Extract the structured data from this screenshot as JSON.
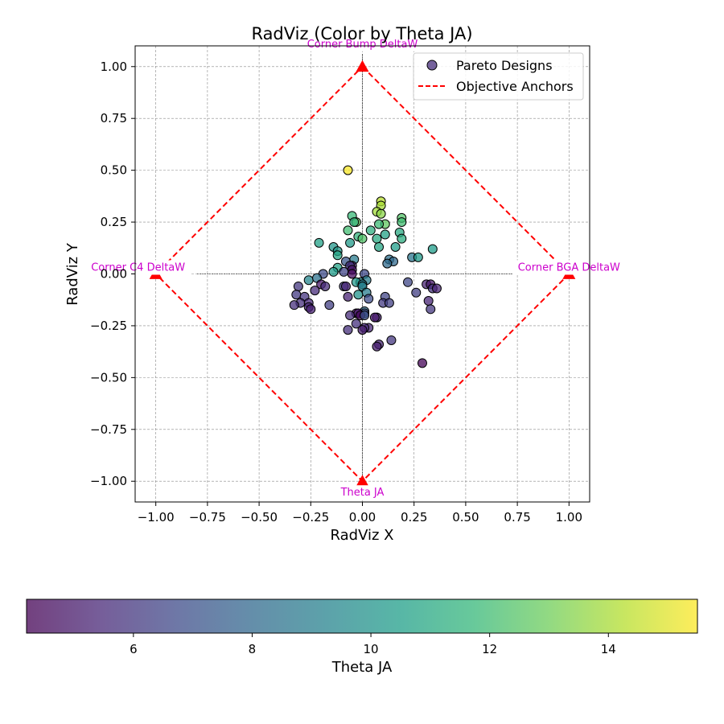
{
  "chart_data": {
    "type": "scatter",
    "title": "RadViz (Color by Theta JA)",
    "xlabel": "RadViz X",
    "ylabel": "RadViz Y",
    "xlim": [
      -1.1,
      1.1
    ],
    "ylim": [
      -1.1,
      1.1
    ],
    "xticks": [
      "-1.00",
      "-0.75",
      "-0.50",
      "-0.25",
      "0.00",
      "0.25",
      "0.50",
      "0.75",
      "1.00"
    ],
    "yticks": [
      "1.00",
      "0.75",
      "0.50",
      "0.25",
      "0.00",
      "-0.25",
      "-0.50",
      "-0.75",
      "-1.00"
    ],
    "grid": true,
    "legend": {
      "placement": "top-right",
      "entries": [
        "Pareto Designs",
        "Objective Anchors"
      ]
    },
    "anchors": [
      {
        "label": "Corner Bump DeltaW",
        "x": 0,
        "y": 1
      },
      {
        "label": "Corner BGA DeltaW",
        "x": 1,
        "y": 0
      },
      {
        "label": "Theta JA",
        "x": 0,
        "y": -1
      },
      {
        "label": "Corner C4 DeltaW",
        "x": -1,
        "y": 0
      }
    ],
    "colorbar": {
      "label": "Theta JA",
      "range": [
        4.2,
        15.5
      ],
      "ticks": [
        "6",
        "8",
        "10",
        "12",
        "14"
      ],
      "tick_values": [
        6,
        8,
        10,
        12,
        14
      ]
    },
    "points": [
      {
        "x": -0.07,
        "y": 0.5,
        "c": 15.4
      },
      {
        "x": 0.09,
        "y": 0.35,
        "c": 14.3
      },
      {
        "x": 0.09,
        "y": 0.33,
        "c": 14.0
      },
      {
        "x": 0.07,
        "y": 0.3,
        "c": 13.9
      },
      {
        "x": 0.09,
        "y": 0.29,
        "c": 13.5
      },
      {
        "x": -0.05,
        "y": 0.28,
        "c": 11.8
      },
      {
        "x": 0.19,
        "y": 0.27,
        "c": 12.4
      },
      {
        "x": -0.03,
        "y": 0.25,
        "c": 12.9
      },
      {
        "x": -0.04,
        "y": 0.25,
        "c": 11.5
      },
      {
        "x": 0.19,
        "y": 0.25,
        "c": 12.0
      },
      {
        "x": 0.11,
        "y": 0.24,
        "c": 12.7
      },
      {
        "x": 0.08,
        "y": 0.24,
        "c": 11.9
      },
      {
        "x": -0.07,
        "y": 0.21,
        "c": 12.0
      },
      {
        "x": 0.04,
        "y": 0.21,
        "c": 11.3
      },
      {
        "x": 0.18,
        "y": 0.2,
        "c": 11.0
      },
      {
        "x": 0.11,
        "y": 0.19,
        "c": 10.7
      },
      {
        "x": -0.02,
        "y": 0.18,
        "c": 11.5
      },
      {
        "x": 0.0,
        "y": 0.17,
        "c": 12.4
      },
      {
        "x": 0.07,
        "y": 0.17,
        "c": 11.0
      },
      {
        "x": 0.19,
        "y": 0.17,
        "c": 11.2
      },
      {
        "x": -0.21,
        "y": 0.15,
        "c": 10.6
      },
      {
        "x": -0.06,
        "y": 0.15,
        "c": 10.3
      },
      {
        "x": 0.08,
        "y": 0.13,
        "c": 10.9
      },
      {
        "x": 0.16,
        "y": 0.13,
        "c": 10.5
      },
      {
        "x": -0.14,
        "y": 0.13,
        "c": 10.1
      },
      {
        "x": 0.34,
        "y": 0.12,
        "c": 10.4
      },
      {
        "x": -0.12,
        "y": 0.11,
        "c": 10.2
      },
      {
        "x": -0.12,
        "y": 0.09,
        "c": 10.9
      },
      {
        "x": 0.24,
        "y": 0.08,
        "c": 8.6
      },
      {
        "x": 0.27,
        "y": 0.08,
        "c": 10.3
      },
      {
        "x": -0.04,
        "y": 0.07,
        "c": 8.9
      },
      {
        "x": 0.13,
        "y": 0.07,
        "c": 8.3
      },
      {
        "x": 0.15,
        "y": 0.06,
        "c": 8.0
      },
      {
        "x": -0.08,
        "y": 0.06,
        "c": 7.2
      },
      {
        "x": 0.12,
        "y": 0.05,
        "c": 8.1
      },
      {
        "x": -0.05,
        "y": 0.04,
        "c": 5.0
      },
      {
        "x": -0.06,
        "y": 0.04,
        "c": 5.9
      },
      {
        "x": -0.12,
        "y": 0.03,
        "c": 10.7
      },
      {
        "x": -0.05,
        "y": 0.02,
        "c": 4.7
      },
      {
        "x": -0.09,
        "y": 0.01,
        "c": 6.5
      },
      {
        "x": -0.05,
        "y": 0.0,
        "c": 4.5
      },
      {
        "x": 0.01,
        "y": 0.0,
        "c": 6.7
      },
      {
        "x": -0.14,
        "y": 0.01,
        "c": 10.4
      },
      {
        "x": -0.19,
        "y": 0.0,
        "c": 6.8
      },
      {
        "x": -0.26,
        "y": -0.03,
        "c": 9.4
      },
      {
        "x": -0.22,
        "y": -0.02,
        "c": 8.4
      },
      {
        "x": 0.02,
        "y": -0.03,
        "c": 9.0
      },
      {
        "x": -0.01,
        "y": -0.04,
        "c": 9.6
      },
      {
        "x": -0.03,
        "y": -0.04,
        "c": 10.2
      },
      {
        "x": 0.22,
        "y": -0.04,
        "c": 6.6
      },
      {
        "x": 0.31,
        "y": -0.05,
        "c": 5.2
      },
      {
        "x": 0.33,
        "y": -0.05,
        "c": 4.9
      },
      {
        "x": 0.0,
        "y": -0.05,
        "c": 8.9
      },
      {
        "x": 0.0,
        "y": -0.06,
        "c": 9.2
      },
      {
        "x": -0.2,
        "y": -0.05,
        "c": 5.0
      },
      {
        "x": -0.18,
        "y": -0.06,
        "c": 5.6
      },
      {
        "x": -0.31,
        "y": -0.06,
        "c": 6.0
      },
      {
        "x": -0.09,
        "y": -0.06,
        "c": 6.2
      },
      {
        "x": -0.08,
        "y": -0.06,
        "c": 5.4
      },
      {
        "x": 0.34,
        "y": -0.07,
        "c": 5.8
      },
      {
        "x": 0.36,
        "y": -0.07,
        "c": 5.3
      },
      {
        "x": -0.23,
        "y": -0.08,
        "c": 5.6
      },
      {
        "x": 0.02,
        "y": -0.09,
        "c": 9.0
      },
      {
        "x": 0.26,
        "y": -0.09,
        "c": 6.3
      },
      {
        "x": -0.02,
        "y": -0.1,
        "c": 10.0
      },
      {
        "x": -0.32,
        "y": -0.1,
        "c": 6.1
      },
      {
        "x": -0.28,
        "y": -0.11,
        "c": 5.9
      },
      {
        "x": 0.11,
        "y": -0.11,
        "c": 6.5
      },
      {
        "x": -0.07,
        "y": -0.11,
        "c": 5.3
      },
      {
        "x": 0.03,
        "y": -0.12,
        "c": 6.8
      },
      {
        "x": 0.32,
        "y": -0.13,
        "c": 5.4
      },
      {
        "x": -0.3,
        "y": -0.14,
        "c": 5.7
      },
      {
        "x": 0.1,
        "y": -0.14,
        "c": 6.1
      },
      {
        "x": 0.13,
        "y": -0.14,
        "c": 6.3
      },
      {
        "x": -0.26,
        "y": -0.14,
        "c": 5.5
      },
      {
        "x": -0.16,
        "y": -0.15,
        "c": 6.3
      },
      {
        "x": -0.33,
        "y": -0.15,
        "c": 5.7
      },
      {
        "x": -0.26,
        "y": -0.16,
        "c": 5.4
      },
      {
        "x": -0.25,
        "y": -0.17,
        "c": 5.2
      },
      {
        "x": 0.33,
        "y": -0.17,
        "c": 6.0
      },
      {
        "x": 0.01,
        "y": -0.18,
        "c": 8.2
      },
      {
        "x": 0.01,
        "y": -0.19,
        "c": 6.6
      },
      {
        "x": -0.03,
        "y": -0.19,
        "c": 4.6
      },
      {
        "x": -0.02,
        "y": -0.19,
        "c": 5.0
      },
      {
        "x": -0.01,
        "y": -0.2,
        "c": 4.4
      },
      {
        "x": -0.06,
        "y": -0.2,
        "c": 5.6
      },
      {
        "x": 0.01,
        "y": -0.2,
        "c": 7.0
      },
      {
        "x": 0.07,
        "y": -0.21,
        "c": 5.2
      },
      {
        "x": 0.06,
        "y": -0.21,
        "c": 5.0
      },
      {
        "x": -0.03,
        "y": -0.24,
        "c": 5.8
      },
      {
        "x": 0.03,
        "y": -0.26,
        "c": 5.4
      },
      {
        "x": 0.01,
        "y": -0.26,
        "c": 5.5
      },
      {
        "x": 0.0,
        "y": -0.27,
        "c": 5.1
      },
      {
        "x": -0.07,
        "y": -0.27,
        "c": 5.7
      },
      {
        "x": 0.14,
        "y": -0.32,
        "c": 6.0
      },
      {
        "x": 0.08,
        "y": -0.34,
        "c": 5.4
      },
      {
        "x": 0.07,
        "y": -0.35,
        "c": 5.1
      },
      {
        "x": 0.29,
        "y": -0.43,
        "c": 4.3
      }
    ]
  }
}
